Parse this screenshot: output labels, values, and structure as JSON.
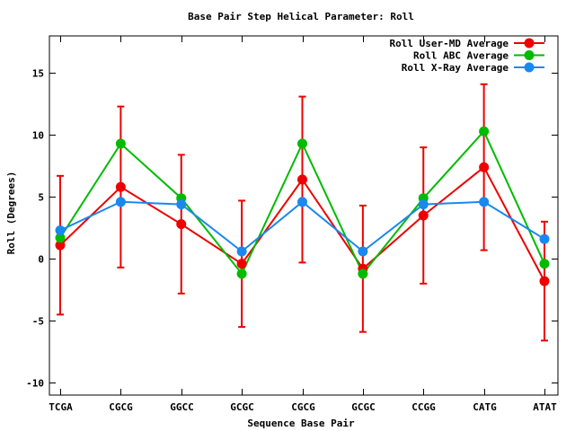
{
  "chart_data": {
    "type": "line",
    "title": "Base Pair Step Helical Parameter: Roll",
    "xlabel": "Sequence Base Pair",
    "ylabel": "Roll (Degrees)",
    "categories": [
      "TCGA",
      "CGCG",
      "GGCC",
      "GCGC",
      "CGCG",
      "GCGC",
      "CCGG",
      "CATG",
      "ATAT"
    ],
    "ylim": [
      -11,
      18
    ],
    "yticks": [
      -10,
      -5,
      0,
      5,
      10,
      15
    ],
    "legend_position": "top-right",
    "grid": false,
    "series": [
      {
        "name": "Roll User-MD Average",
        "color": "#ee0000",
        "values": [
          1.1,
          5.8,
          2.8,
          -0.4,
          6.4,
          -0.8,
          3.5,
          7.4,
          -1.8
        ],
        "error": [
          5.6,
          6.5,
          5.6,
          5.1,
          6.7,
          5.1,
          5.5,
          6.7,
          4.8
        ]
      },
      {
        "name": "Roll ABC Average",
        "color": "#00bb00",
        "values": [
          1.7,
          9.3,
          4.9,
          -1.2,
          9.3,
          -1.2,
          4.9,
          10.3,
          -0.4
        ]
      },
      {
        "name": "Roll X-Ray Average",
        "color": "#1a88ee",
        "values": [
          2.3,
          4.6,
          4.4,
          0.6,
          4.6,
          0.6,
          4.4,
          4.6,
          1.6
        ]
      }
    ]
  }
}
